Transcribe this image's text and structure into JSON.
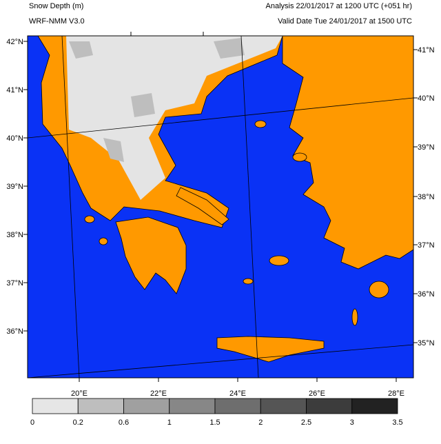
{
  "map": {
    "title": "Snow Depth (m)",
    "model": "WRF-NMM V3.0",
    "analysis": "Analysis 22/01/2017 at 1200 UTC (+051 hr)",
    "valid": "Valid Date Tue 24/01/2017 at 1500 UTC",
    "lat_labels_left": [
      "42°N",
      "41°N",
      "40°N",
      "39°N",
      "38°N",
      "37°N",
      "36°N"
    ],
    "lat_labels_right": [
      "41°N",
      "40°N",
      "39°N",
      "38°N",
      "37°N",
      "36°N",
      "35°N"
    ],
    "lon_labels": [
      "20°E",
      "22°E",
      "24°E",
      "26°E",
      "28°E"
    ],
    "colorbar": {
      "levels": [
        0,
        0.2,
        0.6,
        1,
        1.5,
        2,
        2.5,
        3,
        3.5
      ],
      "colors": [
        "#e6e6e6",
        "#bebebe",
        "#a0a0a0",
        "#878787",
        "#6e6e6e",
        "#555555",
        "#3c3c3c",
        "#222222"
      ]
    }
  }
}
